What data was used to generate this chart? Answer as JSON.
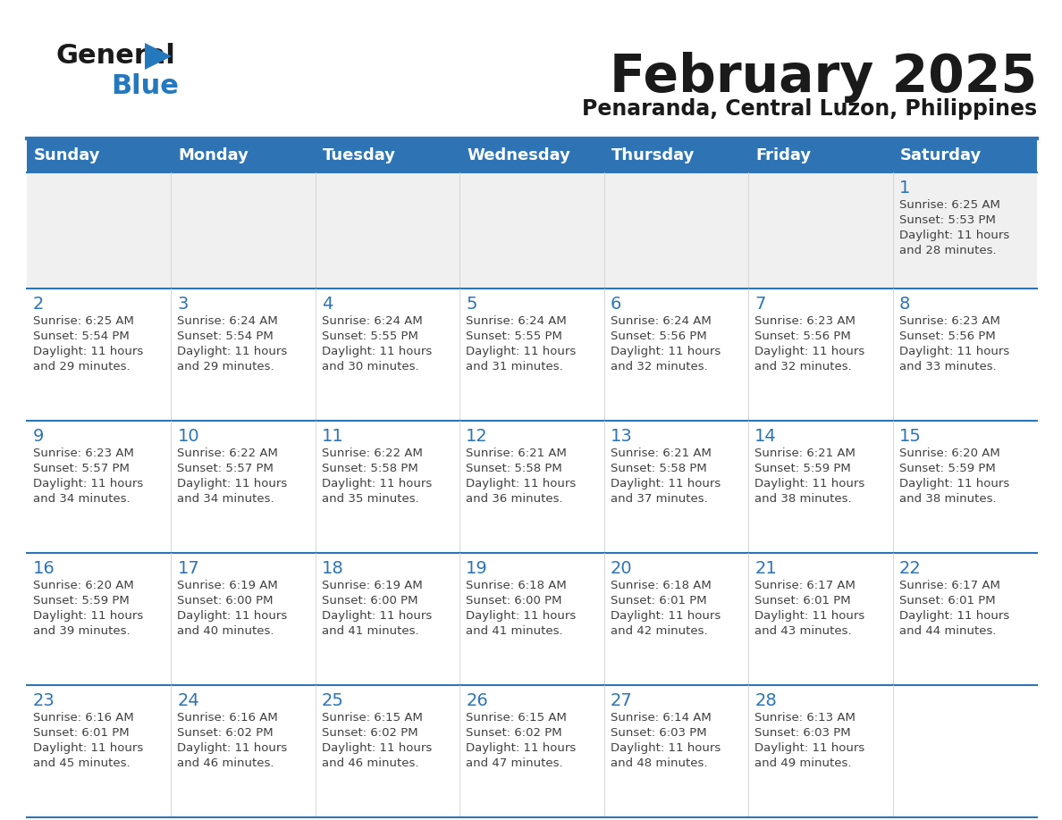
{
  "title": "February 2025",
  "subtitle": "Penaranda, Central Luzon, Philippines",
  "days_of_week": [
    "Sunday",
    "Monday",
    "Tuesday",
    "Wednesday",
    "Thursday",
    "Friday",
    "Saturday"
  ],
  "header_bg": "#2E74B5",
  "header_text": "#FFFFFF",
  "cell_bg_light": "#FFFFFF",
  "cell_bg_gray": "#F0F0F0",
  "day_number_color": "#2E74B5",
  "text_color": "#404040",
  "line_color": "#2E74B5",
  "logo_black": "#1a1a1a",
  "logo_blue": "#2479BE",
  "calendar_data": [
    [
      null,
      null,
      null,
      null,
      null,
      null,
      {
        "day": 1,
        "sunrise": "6:25 AM",
        "sunset": "5:53 PM",
        "daylight": "11 hours and 28 minutes."
      }
    ],
    [
      {
        "day": 2,
        "sunrise": "6:25 AM",
        "sunset": "5:54 PM",
        "daylight": "11 hours and 29 minutes."
      },
      {
        "day": 3,
        "sunrise": "6:24 AM",
        "sunset": "5:54 PM",
        "daylight": "11 hours and 29 minutes."
      },
      {
        "day": 4,
        "sunrise": "6:24 AM",
        "sunset": "5:55 PM",
        "daylight": "11 hours and 30 minutes."
      },
      {
        "day": 5,
        "sunrise": "6:24 AM",
        "sunset": "5:55 PM",
        "daylight": "11 hours and 31 minutes."
      },
      {
        "day": 6,
        "sunrise": "6:24 AM",
        "sunset": "5:56 PM",
        "daylight": "11 hours and 32 minutes."
      },
      {
        "day": 7,
        "sunrise": "6:23 AM",
        "sunset": "5:56 PM",
        "daylight": "11 hours and 32 minutes."
      },
      {
        "day": 8,
        "sunrise": "6:23 AM",
        "sunset": "5:56 PM",
        "daylight": "11 hours and 33 minutes."
      }
    ],
    [
      {
        "day": 9,
        "sunrise": "6:23 AM",
        "sunset": "5:57 PM",
        "daylight": "11 hours and 34 minutes."
      },
      {
        "day": 10,
        "sunrise": "6:22 AM",
        "sunset": "5:57 PM",
        "daylight": "11 hours and 34 minutes."
      },
      {
        "day": 11,
        "sunrise": "6:22 AM",
        "sunset": "5:58 PM",
        "daylight": "11 hours and 35 minutes."
      },
      {
        "day": 12,
        "sunrise": "6:21 AM",
        "sunset": "5:58 PM",
        "daylight": "11 hours and 36 minutes."
      },
      {
        "day": 13,
        "sunrise": "6:21 AM",
        "sunset": "5:58 PM",
        "daylight": "11 hours and 37 minutes."
      },
      {
        "day": 14,
        "sunrise": "6:21 AM",
        "sunset": "5:59 PM",
        "daylight": "11 hours and 38 minutes."
      },
      {
        "day": 15,
        "sunrise": "6:20 AM",
        "sunset": "5:59 PM",
        "daylight": "11 hours and 38 minutes."
      }
    ],
    [
      {
        "day": 16,
        "sunrise": "6:20 AM",
        "sunset": "5:59 PM",
        "daylight": "11 hours and 39 minutes."
      },
      {
        "day": 17,
        "sunrise": "6:19 AM",
        "sunset": "6:00 PM",
        "daylight": "11 hours and 40 minutes."
      },
      {
        "day": 18,
        "sunrise": "6:19 AM",
        "sunset": "6:00 PM",
        "daylight": "11 hours and 41 minutes."
      },
      {
        "day": 19,
        "sunrise": "6:18 AM",
        "sunset": "6:00 PM",
        "daylight": "11 hours and 41 minutes."
      },
      {
        "day": 20,
        "sunrise": "6:18 AM",
        "sunset": "6:01 PM",
        "daylight": "11 hours and 42 minutes."
      },
      {
        "day": 21,
        "sunrise": "6:17 AM",
        "sunset": "6:01 PM",
        "daylight": "11 hours and 43 minutes."
      },
      {
        "day": 22,
        "sunrise": "6:17 AM",
        "sunset": "6:01 PM",
        "daylight": "11 hours and 44 minutes."
      }
    ],
    [
      {
        "day": 23,
        "sunrise": "6:16 AM",
        "sunset": "6:01 PM",
        "daylight": "11 hours and 45 minutes."
      },
      {
        "day": 24,
        "sunrise": "6:16 AM",
        "sunset": "6:02 PM",
        "daylight": "11 hours and 46 minutes."
      },
      {
        "day": 25,
        "sunrise": "6:15 AM",
        "sunset": "6:02 PM",
        "daylight": "11 hours and 46 minutes."
      },
      {
        "day": 26,
        "sunrise": "6:15 AM",
        "sunset": "6:02 PM",
        "daylight": "11 hours and 47 minutes."
      },
      {
        "day": 27,
        "sunrise": "6:14 AM",
        "sunset": "6:03 PM",
        "daylight": "11 hours and 48 minutes."
      },
      {
        "day": 28,
        "sunrise": "6:13 AM",
        "sunset": "6:03 PM",
        "daylight": "11 hours and 49 minutes."
      },
      null
    ]
  ]
}
